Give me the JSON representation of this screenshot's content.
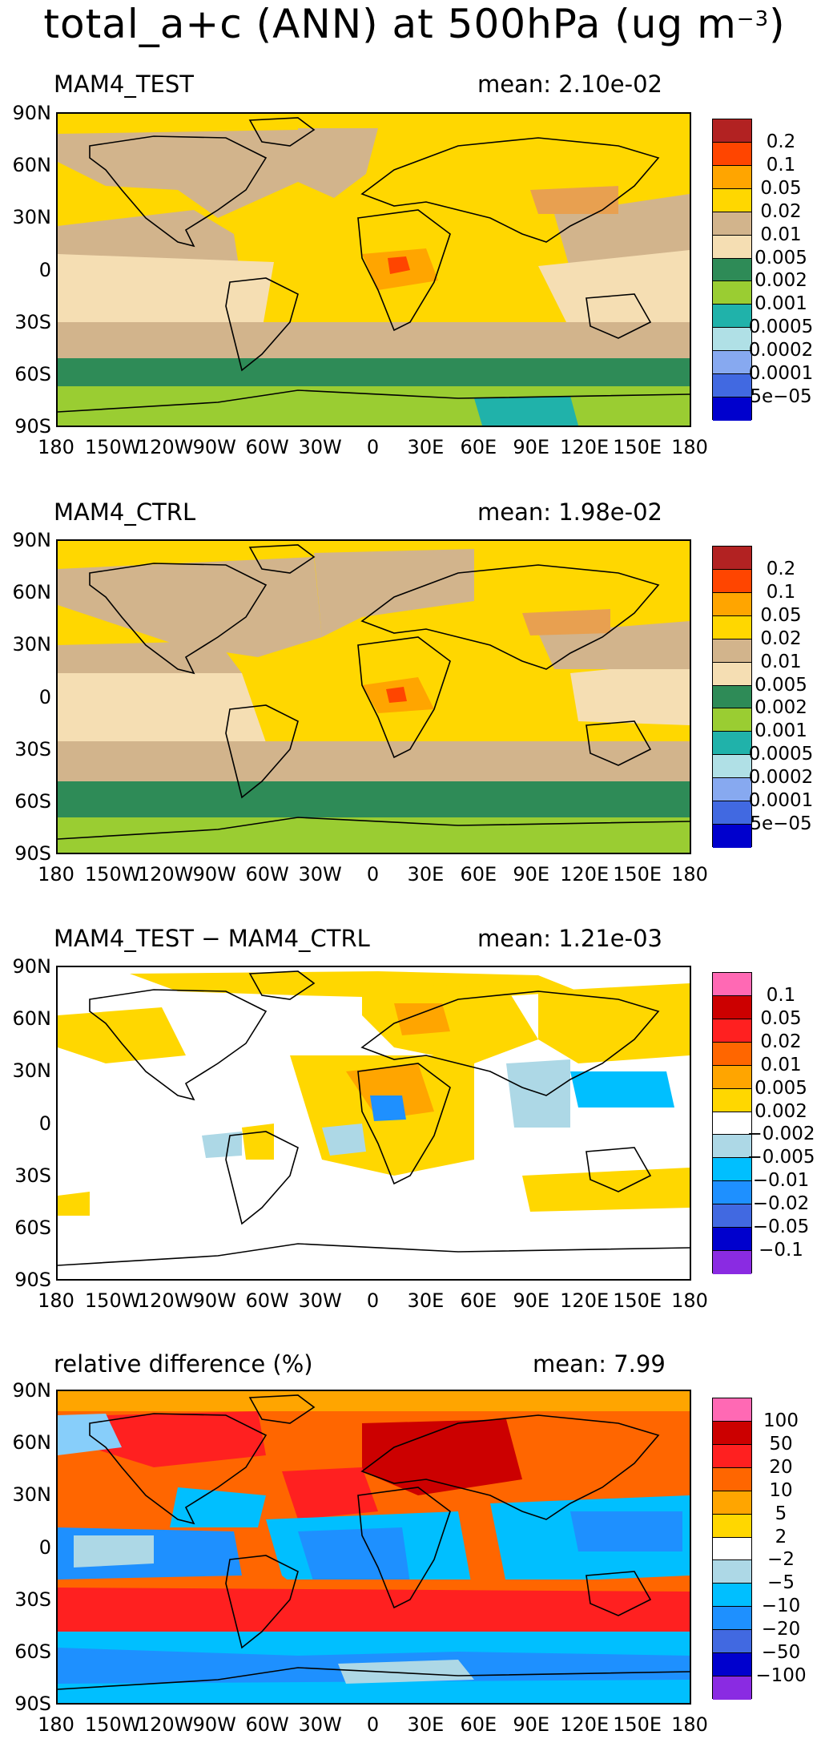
{
  "title": {
    "main": "total_a+c (ANN) at 500hPa (ug m",
    "sup": "−3",
    "close": ")"
  },
  "axes": {
    "lat_labels": [
      "90N",
      "60N",
      "30N",
      "0",
      "30S",
      "60S",
      "90S"
    ],
    "lon_labels": [
      "180",
      "150W",
      "120W",
      "90W",
      "60W",
      "30W",
      "0",
      "30E",
      "60E",
      "90E",
      "120E",
      "150E",
      "180"
    ]
  },
  "palettes": {
    "abs": [
      "#b22222",
      "#ff4500",
      "#ffa500",
      "#ffd700",
      "#d2b48c",
      "#f5deb3",
      "#2e8b57",
      "#9acd32",
      "#20b2aa",
      "#b0e0e6",
      "#87a9f0",
      "#4169e1",
      "#0000cd"
    ],
    "diff": [
      "#ff69b4",
      "#cc0000",
      "#ff2020",
      "#ff6600",
      "#ffa500",
      "#ffd700",
      "#ffffff",
      "#add8e6",
      "#00bfff",
      "#1e90ff",
      "#4169e1",
      "#0000cd",
      "#8a2be2"
    ]
  },
  "panels": [
    {
      "name": "MAM4_TEST",
      "mean_label": "mean:",
      "mean": "2.10e-02",
      "colorbar": [
        "0.2",
        "0.1",
        "0.05",
        "0.02",
        "0.01",
        "0.005",
        "0.002",
        "0.001",
        "0.0005",
        "0.0002",
        "0.0001",
        "5e−05"
      ]
    },
    {
      "name": "MAM4_CTRL",
      "mean_label": "mean:",
      "mean": "1.98e-02",
      "colorbar": [
        "0.2",
        "0.1",
        "0.05",
        "0.02",
        "0.01",
        "0.005",
        "0.002",
        "0.001",
        "0.0005",
        "0.0002",
        "0.0001",
        "5e−05"
      ]
    },
    {
      "name": "MAM4_TEST − MAM4_CTRL",
      "mean_label": "mean:",
      "mean": "1.21e-03",
      "colorbar": [
        "0.1",
        "0.05",
        "0.02",
        "0.01",
        "0.005",
        "0.002",
        "−0.002",
        "−0.005",
        "−0.01",
        "−0.02",
        "−0.05",
        "−0.1"
      ]
    },
    {
      "name": "relative difference (%)",
      "mean_label": "mean:",
      "mean": "7.99",
      "colorbar": [
        "100",
        "50",
        "20",
        "10",
        "5",
        "2",
        "−2",
        "−5",
        "−10",
        "−20",
        "−50",
        "−100"
      ]
    }
  ]
}
